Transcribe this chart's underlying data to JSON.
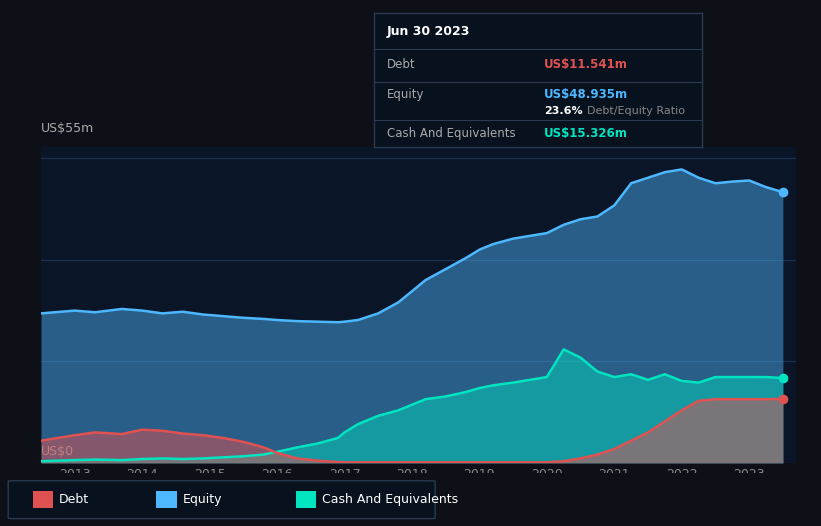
{
  "bg_color": "#0d1117",
  "plot_bg_color": "#0a1628",
  "title": "Jun 30 2023",
  "debt_label": "Debt",
  "equity_label": "Equity",
  "cash_label": "Cash And Equivalents",
  "debt_value": "US$11.541m",
  "equity_value": "US$48.935m",
  "ratio_value": "23.6%",
  "ratio_label": "Debt/Equity Ratio",
  "cash_value": "US$15.326m",
  "debt_color": "#e05252",
  "equity_color": "#4db8ff",
  "cash_color": "#00e5c0",
  "ylim_label_top": "US$55m",
  "ylim_label_bottom": "US$0",
  "years": [
    2013,
    2014,
    2015,
    2016,
    2017,
    2018,
    2019,
    2020,
    2021,
    2022,
    2023
  ],
  "equity_data": {
    "x": [
      2012.5,
      2013.0,
      2013.3,
      2013.7,
      2014.0,
      2014.3,
      2014.6,
      2014.9,
      2015.2,
      2015.5,
      2015.8,
      2016.0,
      2016.3,
      2016.6,
      2016.9,
      2017.0,
      2017.2,
      2017.5,
      2017.8,
      2018.0,
      2018.2,
      2018.5,
      2018.8,
      2019.0,
      2019.2,
      2019.5,
      2019.75,
      2020.0,
      2020.25,
      2020.5,
      2020.75,
      2021.0,
      2021.25,
      2021.5,
      2021.75,
      2022.0,
      2022.25,
      2022.5,
      2022.75,
      2023.0,
      2023.25,
      2023.5
    ],
    "y": [
      27,
      27.5,
      27.2,
      27.8,
      27.5,
      27.0,
      27.3,
      26.8,
      26.5,
      26.2,
      26.0,
      25.8,
      25.6,
      25.5,
      25.4,
      25.5,
      25.8,
      27.0,
      29.0,
      31.0,
      33.0,
      35.0,
      37.0,
      38.5,
      39.5,
      40.5,
      41.0,
      41.5,
      43.0,
      44.0,
      44.5,
      46.5,
      50.5,
      51.5,
      52.5,
      53.0,
      51.5,
      50.5,
      50.8,
      51.0,
      49.8,
      48.9
    ]
  },
  "debt_data": {
    "x": [
      2012.5,
      2013.0,
      2013.3,
      2013.7,
      2014.0,
      2014.3,
      2014.6,
      2014.9,
      2015.2,
      2015.5,
      2015.8,
      2016.0,
      2016.3,
      2016.6,
      2016.9,
      2017.0,
      2017.2,
      2017.5,
      2017.8,
      2018.0,
      2018.2,
      2018.5,
      2018.8,
      2019.0,
      2019.2,
      2019.5,
      2019.75,
      2020.0,
      2020.25,
      2020.5,
      2020.75,
      2021.0,
      2021.25,
      2021.5,
      2021.75,
      2022.0,
      2022.25,
      2022.5,
      2022.75,
      2023.0,
      2023.25,
      2023.5
    ],
    "y": [
      4.0,
      5.0,
      5.5,
      5.2,
      6.0,
      5.8,
      5.3,
      5.0,
      4.5,
      3.8,
      2.8,
      1.8,
      0.8,
      0.4,
      0.15,
      0.1,
      0.1,
      0.1,
      0.1,
      0.1,
      0.1,
      0.1,
      0.1,
      0.1,
      0.1,
      0.1,
      0.1,
      0.1,
      0.3,
      0.8,
      1.5,
      2.5,
      4.0,
      5.5,
      7.5,
      9.5,
      11.2,
      11.5,
      11.5,
      11.5,
      11.5,
      11.541
    ]
  },
  "cash_data": {
    "x": [
      2012.5,
      2013.0,
      2013.3,
      2013.7,
      2014.0,
      2014.3,
      2014.6,
      2014.9,
      2015.2,
      2015.5,
      2015.8,
      2016.0,
      2016.3,
      2016.6,
      2016.9,
      2017.0,
      2017.2,
      2017.5,
      2017.8,
      2018.0,
      2018.2,
      2018.5,
      2018.8,
      2019.0,
      2019.2,
      2019.5,
      2019.75,
      2020.0,
      2020.25,
      2020.5,
      2020.75,
      2021.0,
      2021.25,
      2021.5,
      2021.75,
      2022.0,
      2022.25,
      2022.5,
      2022.75,
      2023.0,
      2023.25,
      2023.5
    ],
    "y": [
      0.3,
      0.5,
      0.6,
      0.5,
      0.7,
      0.8,
      0.7,
      0.8,
      1.0,
      1.2,
      1.5,
      2.0,
      2.8,
      3.5,
      4.5,
      5.5,
      7.0,
      8.5,
      9.5,
      10.5,
      11.5,
      12.0,
      12.8,
      13.5,
      14.0,
      14.5,
      15.0,
      15.5,
      20.5,
      19.0,
      16.5,
      15.5,
      16.0,
      15.0,
      16.0,
      14.8,
      14.5,
      15.5,
      15.5,
      15.5,
      15.5,
      15.326
    ]
  }
}
